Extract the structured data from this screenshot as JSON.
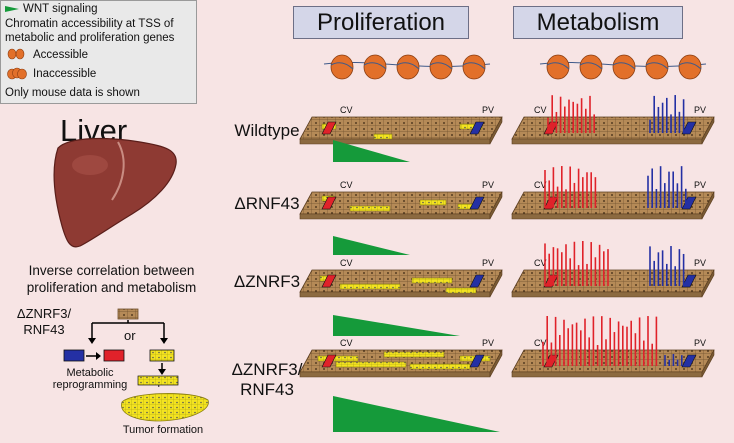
{
  "legend": {
    "wnt": "WNT signaling",
    "line1": "Chromatin accessibility at TSS of",
    "line2": "metabolic and proliferation genes",
    "accessible": "Accessible",
    "inaccessible": "Inaccessible",
    "note": "Only mouse data is shown"
  },
  "headers": {
    "proliferation": "Proliferation",
    "metabolism": "Metabolism"
  },
  "liver": {
    "title": "Liver",
    "corr1": "Inverse correlation between",
    "corr2": "proliferation and metabolism",
    "mut1": "ΔZNRF3/",
    "mut2": "RNF43",
    "or": "or",
    "plus": "+",
    "meta1": "Metabolic",
    "meta2": "reprogramming",
    "tumor": "Tumor formation"
  },
  "rows": [
    {
      "label1": "Wildtype",
      "label2": ""
    },
    {
      "label1": "ΔRNF43",
      "label2": ""
    },
    {
      "label1": "ΔZNRF3",
      "label2": ""
    },
    {
      "label1": "ΔZNRF3/",
      "label2": "RNF43"
    }
  ],
  "zone": {
    "cv": "CV",
    "pv": "PV"
  },
  "colors": {
    "background": "#f7e4e4",
    "proliferation": "#159a3a",
    "pericentral": "#e0222a",
    "periportal": "#2430a4",
    "tissue": "#b58a57",
    "nucleosome": "#e2702a"
  }
}
